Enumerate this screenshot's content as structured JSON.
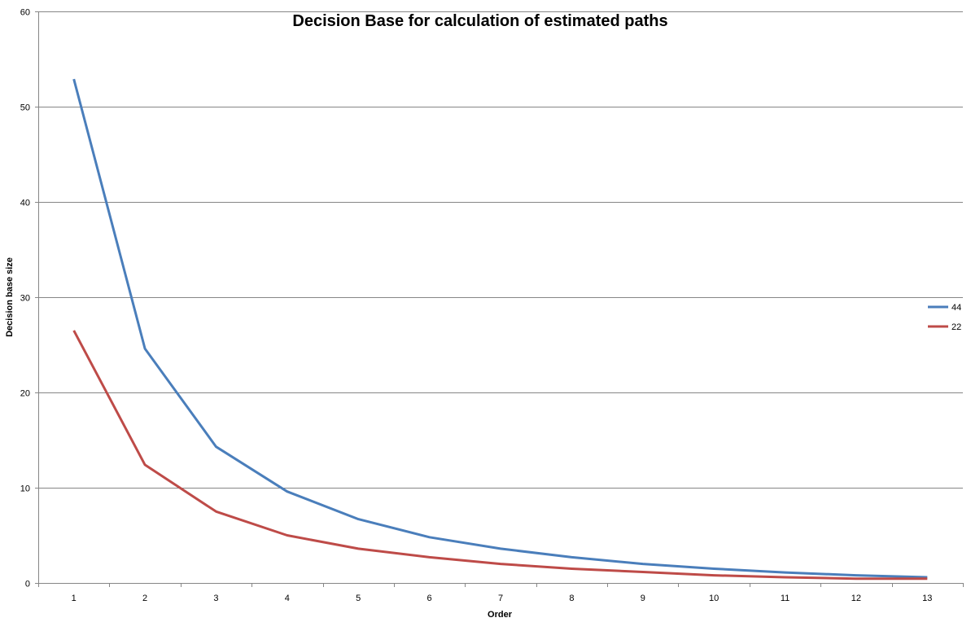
{
  "chart_data": {
    "type": "line",
    "title": "Decision Base for calculation of estimated paths",
    "xlabel": "Order",
    "ylabel": "Decision base size",
    "categories": [
      "1",
      "2",
      "3",
      "4",
      "5",
      "6",
      "7",
      "8",
      "9",
      "10",
      "11",
      "12",
      "13"
    ],
    "ylim": [
      0,
      60
    ],
    "yticks": [
      0,
      10,
      20,
      30,
      40,
      50,
      60
    ],
    "grid": "horizontal",
    "legend_position": "right",
    "series": [
      {
        "name": "44",
        "color": "#4a7ebb",
        "values": [
          52.9,
          24.6,
          14.3,
          9.6,
          6.7,
          4.8,
          3.6,
          2.7,
          2.0,
          1.5,
          1.1,
          0.8,
          0.6
        ]
      },
      {
        "name": "22",
        "color": "#be4b48",
        "values": [
          26.5,
          12.4,
          7.5,
          5.0,
          3.6,
          2.7,
          2.0,
          1.5,
          1.15,
          0.8,
          0.6,
          0.45,
          0.45
        ]
      }
    ]
  }
}
